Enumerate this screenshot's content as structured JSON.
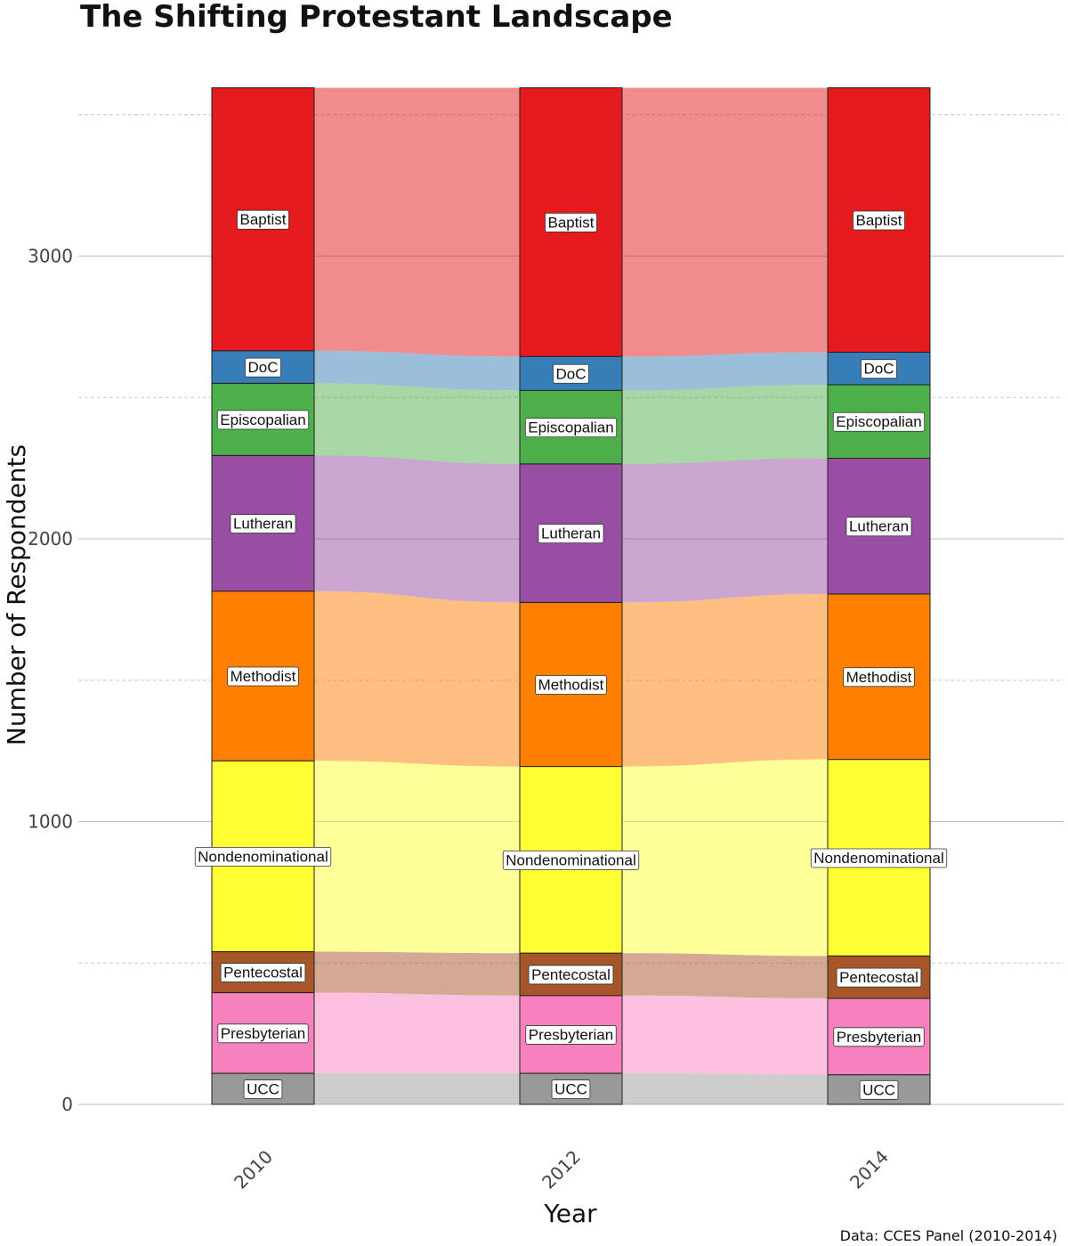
{
  "chart_data": {
    "type": "alluvial",
    "title": "The Shifting Protestant Landscape",
    "xlabel": "Year",
    "ylabel": "Number of Respondents",
    "caption": "Data: CCES Panel (2010-2014)",
    "ylim": [
      0,
      3600
    ],
    "yticks": [
      0,
      1000,
      2000,
      3000
    ],
    "grid": true,
    "x": [
      "2010",
      "2012",
      "2014"
    ],
    "colors": {
      "Baptist": "#e41a1c",
      "DoC": "#377eb8",
      "Episcopalian": "#4daf4a",
      "Lutheran": "#984ea3",
      "Methodist": "#ff7f00",
      "Nondenominational": "#ffff33",
      "Pentecostal": "#a65628",
      "Presbyterian": "#f781bf",
      "UCC": "#999999"
    },
    "categories": [
      "UCC",
      "Presbyterian",
      "Pentecostal",
      "Nondenominational",
      "Methodist",
      "Lutheran",
      "Episcopalian",
      "DoC",
      "Baptist"
    ],
    "series": [
      {
        "year": "2010",
        "values": {
          "UCC": 110,
          "Presbyterian": 285,
          "Pentecostal": 145,
          "Nondenominational": 675,
          "Methodist": 600,
          "Lutheran": 480,
          "Episcopalian": 255,
          "DoC": 115,
          "Baptist": 930
        }
      },
      {
        "year": "2012",
        "values": {
          "UCC": 110,
          "Presbyterian": 275,
          "Pentecostal": 150,
          "Nondenominational": 660,
          "Methodist": 580,
          "Lutheran": 490,
          "Episcopalian": 260,
          "DoC": 120,
          "Baptist": 950
        }
      },
      {
        "year": "2014",
        "values": {
          "UCC": 105,
          "Presbyterian": 270,
          "Pentecostal": 150,
          "Nondenominational": 695,
          "Methodist": 585,
          "Lutheran": 480,
          "Episcopalian": 260,
          "DoC": 115,
          "Baptist": 935
        }
      }
    ]
  }
}
